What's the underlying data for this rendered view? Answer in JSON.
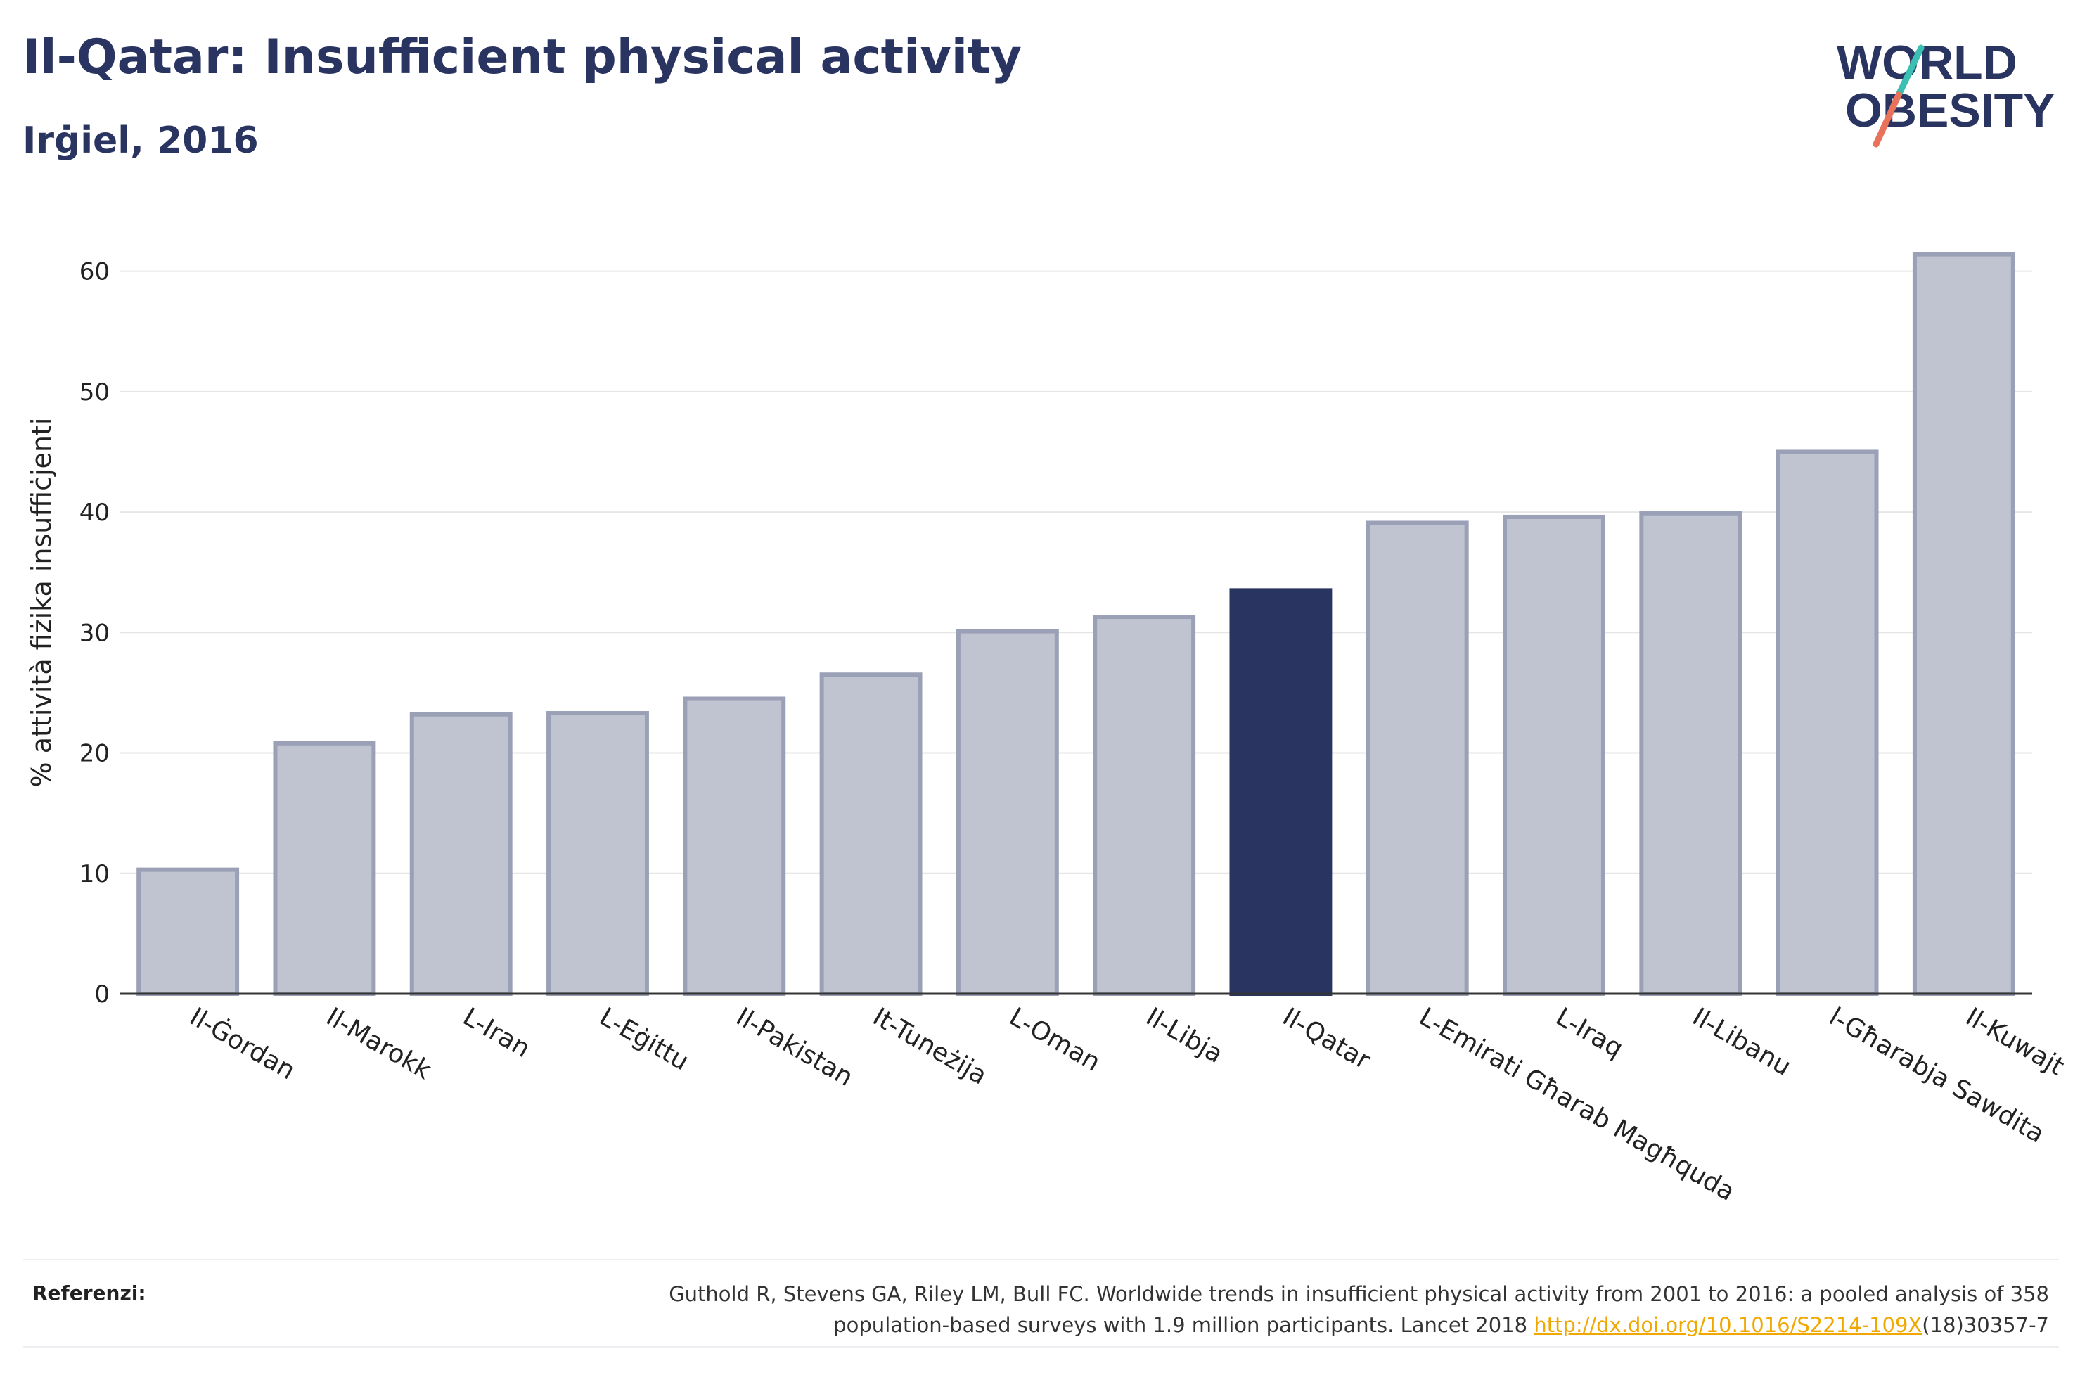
{
  "header": {
    "title": "Il-Qatar: Insufficient physical activity",
    "subtitle": "Irġiel, 2016"
  },
  "logo": {
    "line1": "WORLD",
    "line2": "OBESITY",
    "colors": {
      "text": "#2a3461",
      "slash_top": "#3bbfb3",
      "slash_bottom": "#e8735a"
    }
  },
  "chart_data": {
    "type": "bar",
    "title": "",
    "xlabel": "",
    "ylabel": "% attività fiżika insuffiċjenti",
    "ylim": [
      0,
      65
    ],
    "yticks": [
      0,
      10,
      20,
      30,
      40,
      50,
      60
    ],
    "grid": true,
    "categories": [
      "Il-Ġordan",
      "Il-Marokk",
      "L-Iran",
      "L-Eġittu",
      "Il-Pakistan",
      "It-Tuneżija",
      "L-Oman",
      "Il-Libja",
      "Il-Qatar",
      "L-Emirati Għarab Magħquda",
      "L-Iraq",
      "Il-Libanu",
      "l-Għarabja Sawdita",
      "Il-Kuwajt"
    ],
    "values": [
      10.3,
      20.8,
      23.2,
      23.3,
      24.5,
      26.5,
      30.1,
      31.3,
      33.5,
      39.1,
      39.6,
      39.9,
      45.0,
      61.4
    ],
    "highlight": "Il-Qatar",
    "colors": {
      "bar": "#c0c4d1",
      "bar_border": "#9aa0b6",
      "highlight": "#2a3461",
      "grid": "#e6e6e6",
      "axis": "#333333"
    }
  },
  "references": {
    "label": "Referenzi:",
    "text_line1": "Guthold R, Stevens GA, Riley LM, Bull FC. Worldwide trends in insufficient physical activity from 2001 to 2016: a pooled analysis of 358",
    "text_line2_pre": "population-based surveys with 1.9 million participants. Lancet 2018 ",
    "link": "http://dx.doi.org/10.1016/S2214-109X",
    "text_line2_post": "(18)30357-7"
  }
}
